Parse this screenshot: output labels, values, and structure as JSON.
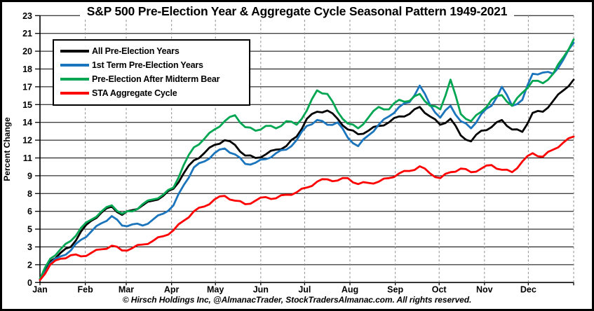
{
  "chart_data": {
    "type": "line",
    "title": "S&P 500 Pre-Election Year & Aggregate Cycle Seasonal Pattern 1949-2021",
    "ylabel": "Percent Change",
    "xlabel": "",
    "ylim": [
      0,
      22.5
    ],
    "y_step": 1.5,
    "y_tick_labels_bottom_to_top": [
      "0",
      "2",
      "3",
      "5",
      "6",
      "8",
      "9",
      "11",
      "12",
      "14",
      "15",
      "17",
      "18",
      "20",
      "21",
      "23"
    ],
    "x_categories_months": [
      "Jan",
      "Feb",
      "Mar",
      "Apr",
      "May",
      "Jun",
      "Jul",
      "Aug",
      "Sep",
      "Oct",
      "Nov",
      "Dec"
    ],
    "month_start_days": [
      0,
      31,
      59,
      90,
      120,
      151,
      181,
      212,
      243,
      273,
      304,
      334,
      365
    ],
    "x_unit": "weekly points, week 0 = Jan 1 through week 52 = Dec 31",
    "grid": "horizontal solid black every 1.5%, vertical dashed gray at month boundaries",
    "legend_position": "top-left inside plot",
    "series": [
      {
        "name": "All Pre-Election Years",
        "color": "#000000",
        "values": [
          0.3,
          1.8,
          2.5,
          3.0,
          4.3,
          5.2,
          5.9,
          6.4,
          5.7,
          6.1,
          6.5,
          6.9,
          7.3,
          7.9,
          9.2,
          10.3,
          10.9,
          11.6,
          12.0,
          11.6,
          10.7,
          10.5,
          10.8,
          11.2,
          11.5,
          12.3,
          13.8,
          14.4,
          14.5,
          13.8,
          12.9,
          12.5,
          12.8,
          13.2,
          13.5,
          14.0,
          14.2,
          14.8,
          14.0,
          13.3,
          13.8,
          12.4,
          11.9,
          12.8,
          13.1,
          13.7,
          12.9,
          12.7,
          14.3,
          14.4,
          15.3,
          16.2,
          17.1
        ]
      },
      {
        "name": "1st Term Pre-Election Years",
        "color": "#1B75BC",
        "values": [
          0.3,
          1.6,
          2.2,
          2.7,
          3.6,
          4.3,
          5.0,
          5.6,
          4.8,
          4.9,
          4.8,
          5.3,
          5.8,
          6.5,
          8.2,
          9.7,
          10.2,
          10.9,
          11.3,
          10.8,
          10.0,
          10.1,
          10.4,
          10.9,
          11.2,
          12.0,
          13.2,
          13.7,
          13.3,
          13.5,
          12.2,
          11.5,
          12.4,
          13.3,
          14.0,
          14.8,
          15.2,
          16.6,
          15.0,
          13.9,
          14.9,
          13.6,
          13.0,
          14.2,
          14.9,
          16.5,
          14.9,
          15.4,
          17.6,
          17.7,
          17.6,
          18.8,
          20.2
        ]
      },
      {
        "name": "Pre-Election After Midterm Bear",
        "color": "#00A651",
        "values": [
          0.3,
          2.0,
          2.8,
          3.5,
          4.6,
          5.3,
          6.0,
          6.5,
          5.8,
          6.0,
          6.6,
          7.0,
          7.4,
          8.0,
          9.9,
          11.4,
          12.1,
          12.9,
          13.6,
          14.1,
          13.1,
          12.8,
          13.2,
          13.0,
          13.6,
          13.3,
          14.5,
          16.2,
          15.9,
          14.4,
          13.4,
          13.0,
          13.9,
          14.8,
          14.6,
          15.4,
          15.3,
          15.9,
          14.9,
          14.6,
          17.1,
          14.2,
          13.6,
          14.4,
          15.4,
          15.8,
          14.9,
          16.0,
          17.0,
          16.8,
          17.6,
          19.0,
          20.5
        ]
      },
      {
        "name": "STA Aggregate Cycle",
        "color": "#FF0000",
        "values": [
          0.2,
          1.5,
          2.0,
          2.3,
          2.2,
          2.5,
          2.8,
          3.1,
          2.7,
          2.9,
          3.2,
          3.5,
          3.9,
          4.4,
          5.2,
          6.0,
          6.4,
          7.0,
          7.3,
          6.9,
          6.6,
          6.9,
          7.2,
          7.1,
          7.4,
          7.6,
          8.0,
          8.5,
          8.7,
          8.6,
          8.8,
          8.3,
          8.4,
          8.5,
          8.8,
          9.2,
          9.4,
          9.8,
          9.2,
          8.8,
          9.3,
          9.6,
          9.3,
          9.6,
          9.9,
          9.5,
          9.3,
          10.2,
          10.9,
          10.6,
          11.2,
          11.8,
          12.3
        ]
      }
    ],
    "footer": "© Hirsch Holdings Inc, @AlmanacTrader, StockTradersAlmanac.com. All rights reserved.",
    "colors": {
      "grid_solid": "#000000",
      "grid_dashed": "#8a8a8a",
      "axis": "#000000",
      "background": "#ffffff",
      "border": "#000000"
    }
  }
}
